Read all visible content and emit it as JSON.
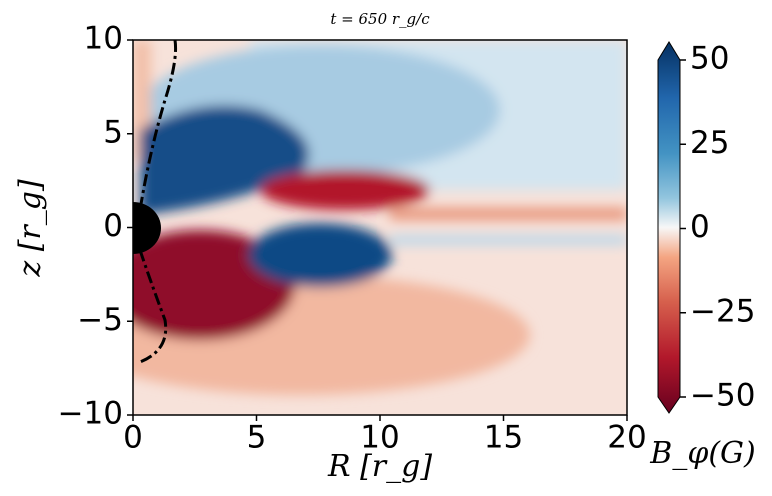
{
  "chart_data": {
    "type": "heatmap",
    "title": "t = 650 r_g/c",
    "xlabel": "R [r_g]",
    "ylabel": "z [r_g]",
    "xlim": [
      0,
      20
    ],
    "xticks": [
      0,
      5,
      10,
      15,
      20
    ],
    "ylim": [
      -10,
      10
    ],
    "yticks": [
      {
        "value": -10,
        "label": "−10"
      },
      {
        "value": -5,
        "label": "−5"
      },
      0,
      5,
      10
    ],
    "colorbar": {
      "label": "B_φ(G)",
      "colormap": "RdBu",
      "lim": [
        -50,
        50
      ],
      "ticks": [
        {
          "value": -50,
          "label": "−50"
        },
        {
          "value": -25,
          "label": "−25"
        },
        0,
        25,
        50
      ]
    }
  }
}
